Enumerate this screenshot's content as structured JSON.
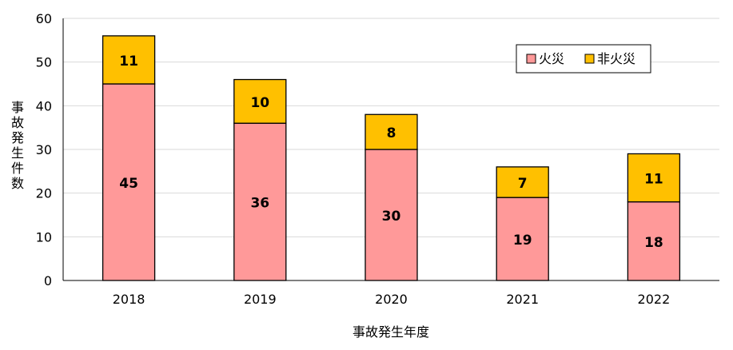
{
  "chart_data": {
    "type": "bar",
    "stacked": true,
    "categories": [
      "2018",
      "2019",
      "2020",
      "2021",
      "2022"
    ],
    "series": [
      {
        "name": "火災",
        "values": [
          45,
          36,
          30,
          19,
          18
        ],
        "color": "#FF9999"
      },
      {
        "name": "非火災",
        "values": [
          11,
          10,
          8,
          7,
          11
        ],
        "color": "#FFC000"
      }
    ],
    "xlabel": "事故発生年度",
    "ylabel": "事故発生件数",
    "ylim": [
      0,
      60
    ],
    "yticks": [
      0,
      10,
      20,
      30,
      40,
      50,
      60
    ],
    "grid": true,
    "legend_position": "top-right"
  }
}
